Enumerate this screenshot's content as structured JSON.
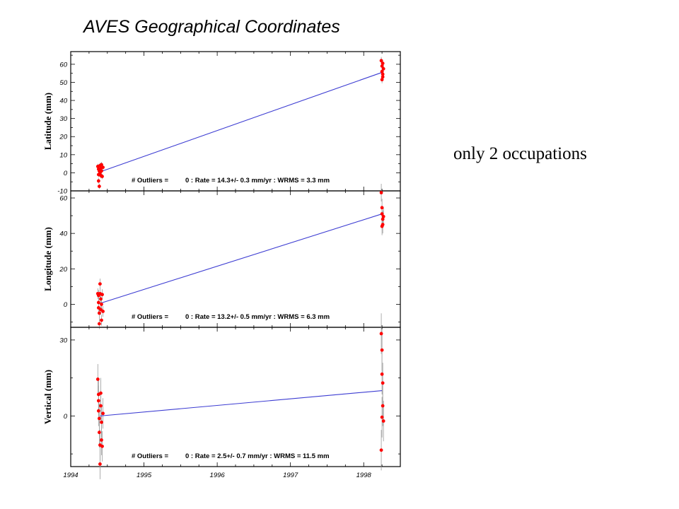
{
  "title": "AVES Geographical Coordinates",
  "side_note": "only 2 occupations",
  "chart_data": [
    {
      "type": "scatter",
      "ylabel": "Latitude (mm)",
      "xlim": [
        1994,
        1998.5
      ],
      "ylim": [
        -10,
        67
      ],
      "yticks": [
        -10,
        0,
        10,
        20,
        30,
        40,
        50,
        60
      ],
      "xticks": [
        1994,
        1995,
        1996,
        1997,
        1998
      ],
      "outliers_label": "# Outliers =",
      "stats_text": "0 : Rate =  14.3+/- 0.3 mm/yr : WRMS = 3.3 mm",
      "fit_line": {
        "x": [
          1994.4,
          1998.25
        ],
        "y": [
          0.5,
          55.5
        ]
      },
      "points": [
        {
          "x": 1994.37,
          "y": 3.5,
          "err": 1.5
        },
        {
          "x": 1994.38,
          "y": 2.0,
          "err": 1.5
        },
        {
          "x": 1994.38,
          "y": -1.0,
          "err": 1.5
        },
        {
          "x": 1994.38,
          "y": -4.5,
          "err": 1.5
        },
        {
          "x": 1994.39,
          "y": -7.5,
          "err": 1.5
        },
        {
          "x": 1994.39,
          "y": 1.0,
          "err": 1.5
        },
        {
          "x": 1994.4,
          "y": 4.0,
          "err": 1.5
        },
        {
          "x": 1994.4,
          "y": 0.0,
          "err": 1.5
        },
        {
          "x": 1994.41,
          "y": -1.5,
          "err": 1.5
        },
        {
          "x": 1994.41,
          "y": 2.5,
          "err": 1.5
        },
        {
          "x": 1994.42,
          "y": 4.5,
          "err": 1.5
        },
        {
          "x": 1994.42,
          "y": 1.0,
          "err": 1.5
        },
        {
          "x": 1994.43,
          "y": -2.0,
          "err": 1.5
        },
        {
          "x": 1994.44,
          "y": 3.0,
          "err": 1.5
        },
        {
          "x": 1998.24,
          "y": 62.0,
          "err": 2
        },
        {
          "x": 1998.25,
          "y": 59.0,
          "err": 2
        },
        {
          "x": 1998.25,
          "y": 56.0,
          "err": 2
        },
        {
          "x": 1998.26,
          "y": 54.5,
          "err": 2
        },
        {
          "x": 1998.26,
          "y": 53.0,
          "err": 2
        },
        {
          "x": 1998.25,
          "y": 51.5,
          "err": 2
        },
        {
          "x": 1998.27,
          "y": 57.5,
          "err": 2
        },
        {
          "x": 1998.26,
          "y": 60.5,
          "err": 2
        }
      ]
    },
    {
      "type": "scatter",
      "ylabel": "Longitude (mm)",
      "xlim": [
        1994,
        1998.5
      ],
      "ylim": [
        -13,
        64
      ],
      "yticks": [
        0,
        20,
        40,
        60
      ],
      "xticks": [
        1994,
        1995,
        1996,
        1997,
        1998
      ],
      "outliers_label": "# Outliers =",
      "stats_text": "0 : Rate =  13.2+/- 0.5 mm/yr : WRMS = 6.3 mm",
      "fit_line": {
        "x": [
          1994.4,
          1998.25
        ],
        "y": [
          0.5,
          51.0
        ]
      },
      "points": [
        {
          "x": 1994.37,
          "y": 6.0,
          "err": 3
        },
        {
          "x": 1994.38,
          "y": 5.0,
          "err": 3
        },
        {
          "x": 1994.38,
          "y": 1.0,
          "err": 3
        },
        {
          "x": 1994.38,
          "y": -2.0,
          "err": 3
        },
        {
          "x": 1994.39,
          "y": -5.0,
          "err": 3
        },
        {
          "x": 1994.39,
          "y": -11.0,
          "err": 3
        },
        {
          "x": 1994.4,
          "y": 11.5,
          "err": 3
        },
        {
          "x": 1994.4,
          "y": 6.0,
          "err": 3
        },
        {
          "x": 1994.41,
          "y": 3.0,
          "err": 3
        },
        {
          "x": 1994.41,
          "y": -3.0,
          "err": 3
        },
        {
          "x": 1994.42,
          "y": 0.0,
          "err": 3
        },
        {
          "x": 1994.42,
          "y": -9.0,
          "err": 3
        },
        {
          "x": 1994.43,
          "y": 5.5,
          "err": 3
        },
        {
          "x": 1994.44,
          "y": -4.0,
          "err": 3
        },
        {
          "x": 1998.24,
          "y": 63.0,
          "err": 5
        },
        {
          "x": 1998.25,
          "y": 54.5,
          "err": 5
        },
        {
          "x": 1998.25,
          "y": 51.0,
          "err": 5
        },
        {
          "x": 1998.26,
          "y": 48.0,
          "err": 5
        },
        {
          "x": 1998.26,
          "y": 45.0,
          "err": 5
        },
        {
          "x": 1998.25,
          "y": 44.0,
          "err": 5
        },
        {
          "x": 1998.27,
          "y": 49.5,
          "err": 5
        }
      ]
    },
    {
      "type": "scatter",
      "ylabel": "Vertical (mm)",
      "xlim": [
        1994,
        1998.5
      ],
      "ylim": [
        -20,
        35
      ],
      "yticks": [
        0,
        30
      ],
      "xticks": [
        1994,
        1995,
        1996,
        1997,
        1998
      ],
      "xtick_labels": [
        "1994",
        "1995",
        "1996",
        "1997",
        "1998"
      ],
      "outliers_label": "# Outliers =",
      "stats_text": "0 : Rate =  2.5+/- 0.7 mm/yr : WRMS = 11.5 mm",
      "fit_line": {
        "x": [
          1994.4,
          1998.25
        ],
        "y": [
          0.0,
          10.0
        ]
      },
      "points": [
        {
          "x": 1994.37,
          "y": 14.5,
          "err": 6
        },
        {
          "x": 1994.38,
          "y": 8.5,
          "err": 6
        },
        {
          "x": 1994.38,
          "y": 6.0,
          "err": 6
        },
        {
          "x": 1994.38,
          "y": 2.0,
          "err": 6
        },
        {
          "x": 1994.39,
          "y": -1.0,
          "err": 6
        },
        {
          "x": 1994.39,
          "y": -6.5,
          "err": 6
        },
        {
          "x": 1994.4,
          "y": -11.5,
          "err": 6
        },
        {
          "x": 1994.4,
          "y": -19.0,
          "err": 6
        },
        {
          "x": 1994.41,
          "y": 9.0,
          "err": 6
        },
        {
          "x": 1994.41,
          "y": 4.0,
          "err": 6
        },
        {
          "x": 1994.42,
          "y": -2.5,
          "err": 6
        },
        {
          "x": 1994.42,
          "y": -9.5,
          "err": 6
        },
        {
          "x": 1994.43,
          "y": -12.0,
          "err": 6
        },
        {
          "x": 1994.44,
          "y": 1.0,
          "err": 6
        },
        {
          "x": 1998.24,
          "y": 32.5,
          "err": 8
        },
        {
          "x": 1998.25,
          "y": 26.0,
          "err": 8
        },
        {
          "x": 1998.25,
          "y": 16.5,
          "err": 8
        },
        {
          "x": 1998.26,
          "y": 13.0,
          "err": 8
        },
        {
          "x": 1998.26,
          "y": 4.0,
          "err": 8
        },
        {
          "x": 1998.25,
          "y": -0.5,
          "err": 8
        },
        {
          "x": 1998.27,
          "y": -2.0,
          "err": 8
        },
        {
          "x": 1998.24,
          "y": -13.5,
          "err": 8
        }
      ]
    }
  ],
  "colors": {
    "point": "#ff0000",
    "fit_line": "#3c3cd2",
    "error_bar": "#9a9a9a",
    "frame": "#000000"
  }
}
